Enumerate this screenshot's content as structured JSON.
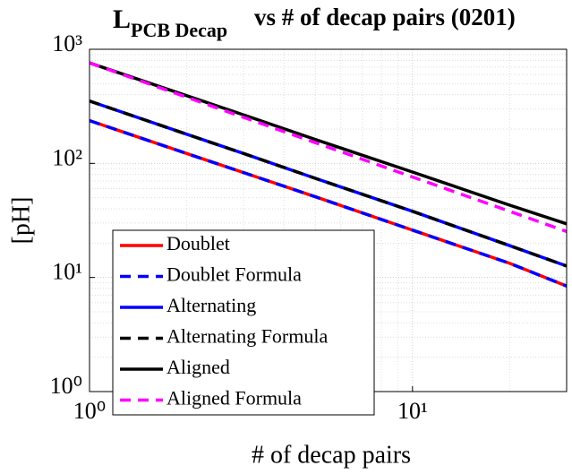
{
  "chart_data": {
    "type": "line",
    "title_symbol": "L",
    "title_subscript": "PCB Decap",
    "title": "vs # of decap pairs (0201)",
    "xlabel": "# of decap pairs",
    "ylabel": "[pH]",
    "log_x": true,
    "log_y": true,
    "grid": true,
    "legend": "lower left",
    "x": [
      1,
      2,
      3,
      5,
      10,
      20,
      30
    ],
    "series": [
      {
        "name": "Doublet",
        "color": "#ff0000",
        "dash": false,
        "values": [
          237,
          122,
          83,
          51,
          26,
          13.3,
          8.4
        ]
      },
      {
        "name": "Doublet Formula",
        "color": "#0000ff",
        "dash": true,
        "values": [
          237,
          122,
          83,
          51,
          26,
          13.3,
          8.4
        ]
      },
      {
        "name": "Alternating",
        "color": "#0000ff",
        "dash": false,
        "values": [
          352,
          180,
          122,
          74,
          38,
          19,
          12.6
        ]
      },
      {
        "name": "Alternating Formula",
        "color": "#000000",
        "dash": true,
        "values": [
          352,
          180,
          122,
          74,
          38,
          19,
          12.6
        ]
      },
      {
        "name": "Aligned",
        "color": "#000000",
        "dash": false,
        "values": [
          760,
          392,
          266,
          162,
          84,
          43,
          29.5
        ]
      },
      {
        "name": "Aligned Formula",
        "color": "#ff00ff",
        "dash": true,
        "values": [
          760,
          380,
          253,
          152,
          76,
          38,
          25.3
        ]
      }
    ],
    "xlim": [
      1,
      30
    ],
    "ylim": [
      1,
      1000
    ],
    "xticks": [
      {
        "value": 1,
        "label": "10⁰"
      },
      {
        "value": 10,
        "label": "10¹"
      }
    ],
    "yticks": [
      {
        "value": 1,
        "label": "10⁰"
      },
      {
        "value": 10,
        "label": "10¹"
      },
      {
        "value": 100,
        "label": "10²"
      },
      {
        "value": 1000,
        "label": "10³"
      }
    ],
    "xminorticks": [
      2,
      3,
      4,
      5,
      6,
      7,
      8,
      9,
      20,
      30
    ],
    "yminorticks": [
      2,
      3,
      4,
      5,
      6,
      7,
      8,
      9,
      20,
      30,
      40,
      50,
      60,
      70,
      80,
      90,
      200,
      300,
      400,
      500,
      600,
      700,
      800,
      900
    ]
  }
}
